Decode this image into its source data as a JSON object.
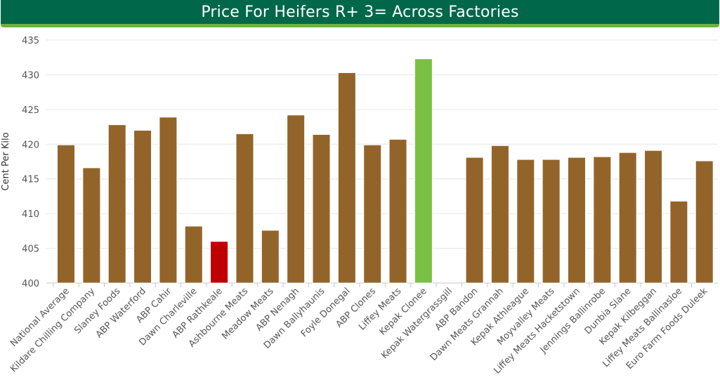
{
  "header": {
    "title": "Price For Heifers R+ 3= Across Factories"
  },
  "colors": {
    "default_bar": "#93642a",
    "lowest_bar": "#c00000",
    "highest_bar": "#7ac143",
    "header_bg": "#00674a",
    "header_accent": "#6cb33f"
  },
  "chart_data": {
    "type": "bar",
    "title": "Price For Heifers R+ 3= Across Factories",
    "xlabel": "",
    "ylabel": "Cent Per Kilo",
    "ylim": [
      400,
      435
    ],
    "yticks": [
      400,
      405,
      410,
      415,
      420,
      425,
      430,
      435
    ],
    "grid": true,
    "legend": "none",
    "categories": [
      "National Average",
      "Kildare Chilling Company",
      "Slaney Foods",
      "ABP Waterford",
      "ABP Cahir",
      "Dawn Charleville",
      "ABP Rathkeale",
      "Ashbourne Meats",
      "Meadow Meats",
      "ABP Nenagh",
      "Dawn Ballyhaunis",
      "Foyle Donegal",
      "ABP Clones",
      "Liffey Meats",
      "Kepak Clonee",
      "Kepak Watergrassgill",
      "ABP Bandon",
      "Dawn Meats Grannah",
      "Kepak Athleague",
      "Moyvalley Meats",
      "Liffey Meats Hacketstown",
      "Jennings Ballinrobe",
      "Dunbia Slane",
      "Kepak Kilbeggan",
      "Liffey Meats Ballinasloe",
      "Euro Farm Foods Duleek"
    ],
    "values": [
      419.9,
      416.6,
      422.8,
      422.0,
      423.9,
      408.2,
      406.0,
      421.5,
      407.6,
      424.2,
      421.4,
      430.3,
      419.9,
      420.7,
      432.3,
      null,
      418.1,
      419.8,
      417.8,
      417.8,
      418.1,
      418.2,
      418.8,
      419.1,
      411.8,
      417.6
    ],
    "highlight": {
      "lowest": "ABP Rathkeale",
      "highest": "Kepak Clonee"
    }
  }
}
